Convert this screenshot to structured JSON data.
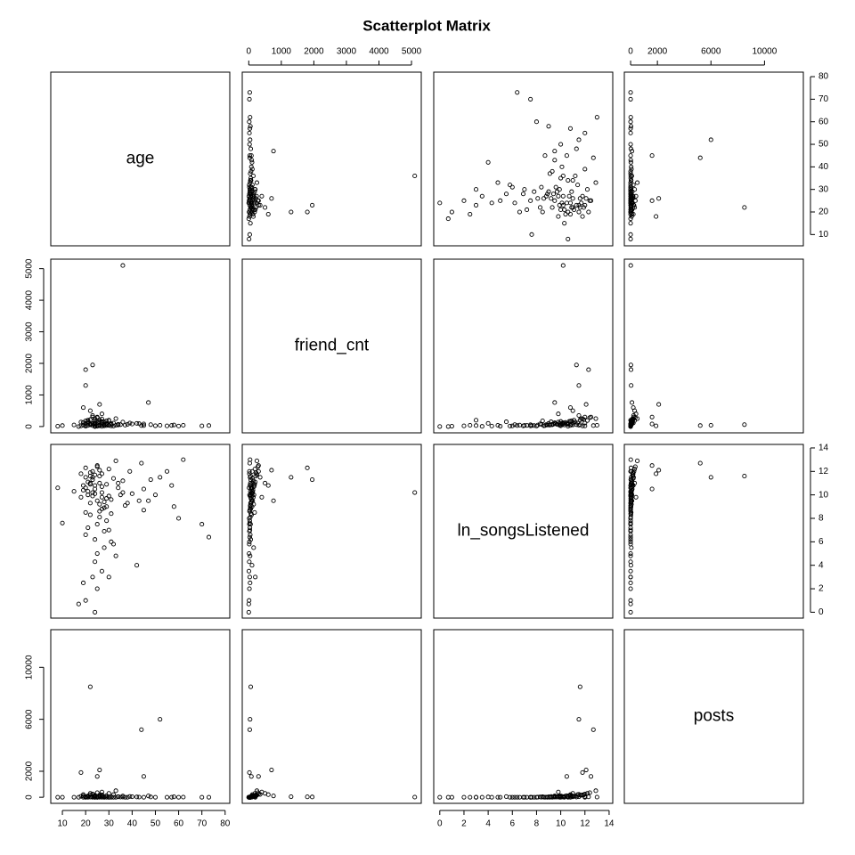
{
  "chart_data": {
    "type": "scatter_matrix",
    "title": "Scatterplot Matrix",
    "point_color": "#000000",
    "variables": [
      {
        "name": "age",
        "lim": [
          5,
          82
        ],
        "ticks": [
          10,
          20,
          30,
          40,
          50,
          60,
          70,
          80
        ],
        "values": [
          36,
          23,
          20,
          20,
          22,
          52,
          44,
          26,
          18,
          25,
          45,
          73,
          70,
          62,
          24,
          17,
          20,
          15,
          8,
          10,
          47,
          55,
          58,
          42,
          30,
          28,
          22,
          19,
          27,
          33,
          25,
          23,
          27,
          21,
          30,
          24,
          26,
          29,
          22,
          32,
          20,
          35,
          24,
          28,
          31,
          19,
          26,
          23,
          38,
          21,
          27,
          34,
          25,
          22,
          29,
          40,
          18,
          24,
          30,
          26,
          33,
          21,
          28,
          45,
          23,
          27,
          20,
          36,
          25,
          31,
          24,
          29,
          50,
          22,
          26,
          37,
          19,
          27,
          32,
          23,
          48,
          25,
          30,
          21,
          28,
          43,
          24,
          26,
          34,
          20,
          39,
          23,
          27,
          60,
          22,
          29,
          25,
          31,
          57,
          24
        ]
      },
      {
        "name": "friend_cnt",
        "lim": [
          -200,
          5300
        ],
        "ticks": [
          0,
          1000,
          2000,
          3000,
          4000,
          5000
        ],
        "values": [
          5100,
          1950,
          1800,
          1300,
          60,
          40,
          30,
          700,
          20,
          300,
          80,
          30,
          20,
          40,
          0,
          0,
          10,
          50,
          10,
          30,
          760,
          20,
          50,
          100,
          200,
          150,
          500,
          600,
          400,
          250,
          120,
          80,
          60,
          200,
          40,
          90,
          150,
          30,
          70,
          110,
          180,
          60,
          250,
          20,
          90,
          130,
          45,
          300,
          70,
          35,
          160,
          50,
          10,
          220,
          100,
          80,
          140,
          60,
          190,
          25,
          40,
          110,
          75,
          30,
          350,
          5,
          95,
          140,
          55,
          20,
          170,
          65,
          25,
          85,
          210,
          45,
          40,
          120,
          15,
          95,
          60,
          280,
          35,
          160,
          50,
          90,
          15,
          130,
          70,
          45,
          110,
          30,
          240,
          15,
          55,
          180,
          20,
          65,
          35,
          105
        ]
      },
      {
        "name": "ln_songsListened",
        "lim": [
          -0.5,
          14.3
        ],
        "ticks": [
          0,
          2,
          4,
          6,
          8,
          10,
          12,
          14
        ],
        "values": [
          10.2,
          11.3,
          12.3,
          11.5,
          11.6,
          11.5,
          12.7,
          12.1,
          11.8,
          12.5,
          10.5,
          6.4,
          7.5,
          13.0,
          0.0,
          0.7,
          1.0,
          10.3,
          10.6,
          7.6,
          9.5,
          12.0,
          9.0,
          4.0,
          3.0,
          5.5,
          11.0,
          10.8,
          9.8,
          12.9,
          9.5,
          10.2,
          8.8,
          11.1,
          9.9,
          10.5,
          9.2,
          7.8,
          10.9,
          11.4,
          8.5,
          10.0,
          11.7,
          6.9,
          9.6,
          10.4,
          8.1,
          12.0,
          9.3,
          7.2,
          10.7,
          11.0,
          5.0,
          11.9,
          9.0,
          10.1,
          9.8,
          6.2,
          12.2,
          8.6,
          4.8,
          10.3,
          9.4,
          8.7,
          11.5,
          3.5,
          10.6,
          11.2,
          7.5,
          6.0,
          10.8,
          9.7,
          10.0,
          8.3,
          11.6,
          9.1,
          2.5,
          10.2,
          5.8,
          9.9,
          11.3,
          12.4,
          7.0,
          10.0,
          8.9,
          9.5,
          4.3,
          11.0,
          10.6,
          6.6,
          12.0,
          3.0,
          11.8,
          8.0,
          9.3,
          10.9,
          2.0,
          8.4,
          10.8,
          10.1
        ]
      },
      {
        "name": "posts",
        "lim": [
          -470,
          12900
        ],
        "ticks": [
          0,
          2000,
          6000,
          10000
        ],
        "values": [
          10,
          20,
          30,
          40,
          8500,
          6000,
          5200,
          2100,
          1900,
          1600,
          1600,
          0,
          0,
          10,
          0,
          0,
          0,
          0,
          0,
          0,
          100,
          0,
          30,
          20,
          0,
          50,
          300,
          200,
          400,
          500,
          50,
          20,
          10,
          80,
          0,
          120,
          60,
          0,
          30,
          200,
          40,
          10,
          150,
          0,
          20,
          90,
          5,
          250,
          0,
          0,
          110,
          30,
          0,
          180,
          15,
          40,
          70,
          0,
          300,
          5,
          0,
          60,
          25,
          0,
          220,
          0,
          45,
          90,
          0,
          0,
          130,
          10,
          0,
          20,
          160,
          0,
          0,
          35,
          0,
          55,
          20,
          350,
          0,
          100,
          0,
          10,
          0,
          85,
          40,
          0,
          60,
          0,
          190,
          0,
          15,
          120,
          0,
          5,
          0,
          70
        ]
      }
    ]
  }
}
